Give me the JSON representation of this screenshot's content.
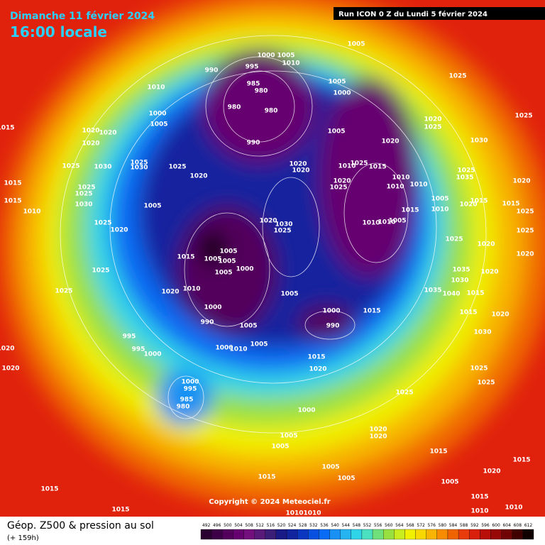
{
  "header": {
    "date": "Dimanche 11 février 2024",
    "time": "16:00 locale",
    "run": "Run ICON 0 Z du Lundi 5 février 2024"
  },
  "copyright": "Copyright © 2024 Meteociel.fr",
  "legend": {
    "title": "Géop. Z500 & pression au sol",
    "subtitle": "(+ 159h)",
    "scale": [
      492,
      496,
      500,
      504,
      508,
      512,
      516,
      520,
      524,
      528,
      532,
      536,
      540,
      544,
      548,
      552,
      556,
      560,
      564,
      568,
      572,
      576,
      580,
      584,
      588,
      592,
      596,
      600,
      604,
      608,
      612
    ],
    "colors": [
      "#2a0030",
      "#3c0046",
      "#52005c",
      "#660070",
      "#74107e",
      "#5a1a7a",
      "#3a1e78",
      "#1a1a86",
      "#12239e",
      "#0a36c0",
      "#0850e0",
      "#0a6cf4",
      "#1890f4",
      "#26b4f0",
      "#30d4e8",
      "#4ae0c0",
      "#70e07a",
      "#98e040",
      "#c8ec20",
      "#f0f000",
      "#f8d800",
      "#f8b400",
      "#f88c00",
      "#f06400",
      "#e83c0c",
      "#d8200c",
      "#b81008",
      "#980808",
      "#700404",
      "#400000",
      "#100000"
    ]
  },
  "isobar_labels": [
    "1000",
    "1005",
    "995",
    "1010",
    "990",
    "1010",
    "985",
    "980",
    "1000",
    "1005",
    "980",
    "980",
    "990",
    "1005",
    "1005",
    "1000",
    "1005",
    "1020",
    "1025",
    "1020",
    "1025",
    "1030",
    "1025",
    "1015",
    "1020",
    "1020",
    "1020",
    "1025",
    "1030",
    "1025",
    "1030",
    "1025",
    "1020",
    "1020",
    "1020",
    "1010",
    "1015",
    "1020",
    "1025",
    "1010",
    "1010",
    "1010",
    "1025",
    "1035",
    "1005",
    "1010",
    "1020",
    "1020",
    "1015",
    "1025",
    "1025",
    "1030",
    "1015",
    "1010",
    "1005",
    "1020",
    "1030",
    "1025",
    "1010",
    "1005",
    "1015",
    "1010",
    "1025",
    "1020",
    "1005",
    "1015",
    "1005",
    "1005",
    "1000",
    "1005",
    "1025",
    "1020",
    "1010",
    "1005",
    "1025",
    "1000",
    "1000",
    "1015",
    "990",
    "1005",
    "990",
    "995",
    "995",
    "1000",
    "1000",
    "1010",
    "1005",
    "1015",
    "1020",
    "1020",
    "1020",
    "1000",
    "995",
    "985",
    "980",
    "1025",
    "1000",
    "1020",
    "1020",
    "1005",
    "1005",
    "1015",
    "1005",
    "1015",
    "1005",
    "1005",
    "1020",
    "1015",
    "1015",
    "1015",
    "1010",
    "1015",
    "1010",
    "1025",
    "1020",
    "1020",
    "1035",
    "1030",
    "1035",
    "1040",
    "1015",
    "1015",
    "1020",
    "1030",
    "1025",
    "1025",
    "1025",
    "1025",
    "1020",
    "1015",
    "1015",
    "1025",
    "1010",
    "1010"
  ]
}
